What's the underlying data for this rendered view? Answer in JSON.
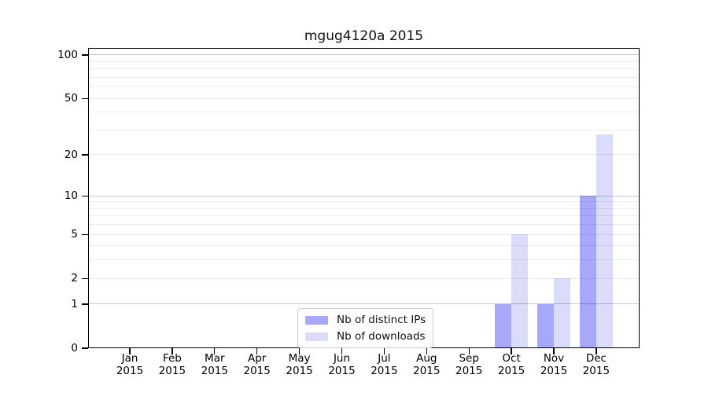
{
  "chart_data": {
    "type": "bar",
    "title": "mgug4120a 2015",
    "x_months": [
      "Jan",
      "Feb",
      "Mar",
      "Apr",
      "May",
      "Jun",
      "Jul",
      "Aug",
      "Sep",
      "Oct",
      "Nov",
      "Dec"
    ],
    "x_year": "2015",
    "series": [
      {
        "name": "Nb of distinct IPs",
        "color": "#a8a8fa",
        "values": [
          0,
          0,
          0,
          0,
          0,
          0,
          0,
          0,
          0,
          1,
          1,
          10
        ]
      },
      {
        "name": "Nb of downloads",
        "color": "#dbdbfa",
        "values": [
          0,
          0,
          0,
          0,
          0,
          0,
          0,
          0,
          0,
          5,
          2,
          28
        ]
      }
    ],
    "y_scale": "log10(value+1)",
    "y_tick_values": [
      0,
      1,
      2,
      5,
      10,
      20,
      50,
      100
    ],
    "y_major_gridlines": [
      1,
      10,
      100
    ],
    "y_minor_gridlines": [
      2,
      3,
      4,
      5,
      6,
      7,
      8,
      9,
      20,
      30,
      40,
      50,
      60,
      70,
      80,
      90
    ],
    "ylim": [
      0,
      112
    ],
    "grid": "horizontal",
    "bar_group": "side-by-side",
    "legend_position": "inside-bottom-center"
  }
}
